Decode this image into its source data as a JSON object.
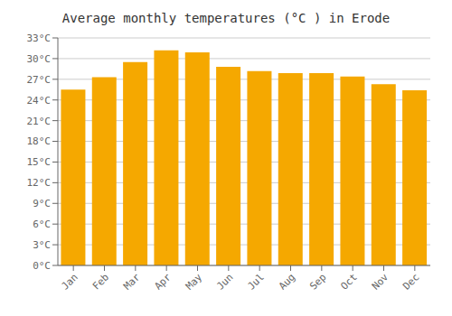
{
  "chart_data": {
    "type": "bar",
    "title": "Average monthly temperatures (°C ) in Erode",
    "categories": [
      "Jan",
      "Feb",
      "Mar",
      "Apr",
      "May",
      "Jun",
      "Jul",
      "Aug",
      "Sep",
      "Oct",
      "Nov",
      "Dec"
    ],
    "values": [
      25.5,
      27.3,
      29.5,
      31.2,
      30.9,
      28.8,
      28.2,
      27.9,
      27.9,
      27.4,
      26.3,
      25.4
    ],
    "color": "#F5A800",
    "ylim": [
      0,
      33
    ],
    "yticks": [
      {
        "value": 0,
        "label": "0°C"
      },
      {
        "value": 3,
        "label": "3°C"
      },
      {
        "value": 6,
        "label": "6°C"
      },
      {
        "value": 9,
        "label": "9°C"
      },
      {
        "value": 12,
        "label": "12°C"
      },
      {
        "value": 15,
        "label": "15°C"
      },
      {
        "value": 18,
        "label": "18°C"
      },
      {
        "value": 21,
        "label": "21°C"
      },
      {
        "value": 24,
        "label": "24°C"
      },
      {
        "value": 27,
        "label": "27°C"
      },
      {
        "value": 30,
        "label": "30°C"
      },
      {
        "value": 33,
        "label": "33°C"
      }
    ],
    "grid": true
  }
}
